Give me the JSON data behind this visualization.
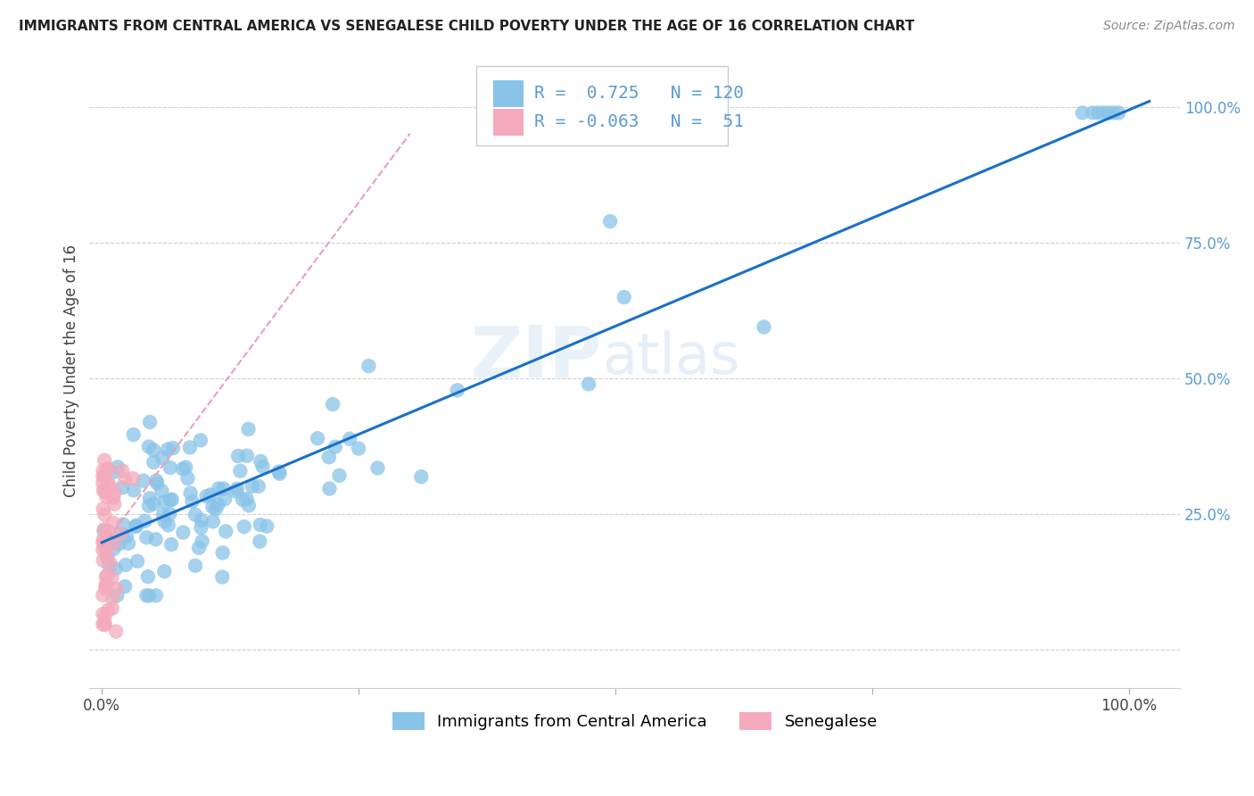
{
  "title": "IMMIGRANTS FROM CENTRAL AMERICA VS SENEGALESE CHILD POVERTY UNDER THE AGE OF 16 CORRELATION CHART",
  "source": "Source: ZipAtlas.com",
  "ylabel": "Child Poverty Under the Age of 16",
  "blue_R": 0.725,
  "blue_N": 120,
  "pink_R": -0.063,
  "pink_N": 51,
  "legend_label_blue": "Immigrants from Central America",
  "legend_label_pink": "Senegalese",
  "watermark_zip": "ZIP",
  "watermark_atlas": "atlas",
  "blue_color": "#89C4E8",
  "pink_color": "#F4AABB",
  "blue_line_color": "#1A70C8",
  "pink_line_color": "#E8A0B8",
  "background_color": "#FFFFFF",
  "grid_color": "#D0D0D0",
  "title_color": "#222222",
  "source_color": "#888888",
  "ylabel_color": "#444444",
  "tick_color_y": "#5B9BD5",
  "tick_color_x": "#444444",
  "legend_text_color": "#5B9BD5"
}
